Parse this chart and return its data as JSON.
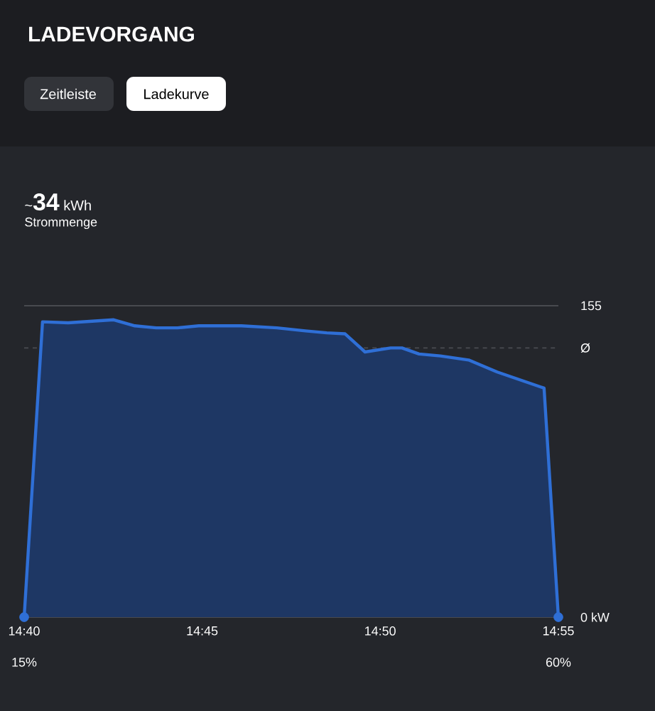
{
  "chart_data": {
    "type": "area",
    "title": "LADEVORGANG",
    "annotations": [
      "Zeitleiste",
      "Ladekurve",
      "~**34** kWh",
      "Strommenge",
      "15%",
      "60%"
    ],
    "series": [
      {
        "color": "#2f6fd6",
        "line_style": "solid",
        "x": [
          14.6667,
          14.6753,
          14.6873,
          14.7086,
          14.7185,
          14.7285,
          14.7385,
          14.7484,
          14.7684,
          14.785,
          14.7983,
          14.8083,
          14.8169,
          14.8262,
          14.8382,
          14.8435,
          14.8515,
          14.8615,
          14.8747,
          14.8881,
          14.91,
          14.9167
        ],
        "values": [
          0,
          147,
          146.5,
          148,
          145,
          144,
          144,
          145,
          145,
          144,
          142.5,
          141.5,
          141,
          132,
          134,
          134,
          131,
          130,
          128,
          122,
          114,
          0
        ]
      },
      {
        "type": "scatter",
        "color": "#2f6fd6",
        "marker": "circle",
        "x": [
          14.6667,
          14.9167
        ],
        "values": [
          0,
          0
        ]
      }
    ],
    "xlim": [
      14.6667,
      14.9167
    ],
    "xticks": [
      {
        "value": 14.6667,
        "label": "14:40"
      },
      {
        "value": 14.75,
        "label": "14:45"
      },
      {
        "value": 14.8333,
        "label": "14:50"
      },
      {
        "value": 14.9167,
        "label": "14:55"
      }
    ],
    "ylim": [
      0,
      155
    ],
    "yticks": [
      {
        "value": 0,
        "label": "0 kW"
      },
      155
    ],
    "ref_lines": [
      {
        "axis": "y",
        "value": 134,
        "label": "Ø",
        "line_style": "dashed",
        "color": "#4a4c52"
      }
    ]
  }
}
